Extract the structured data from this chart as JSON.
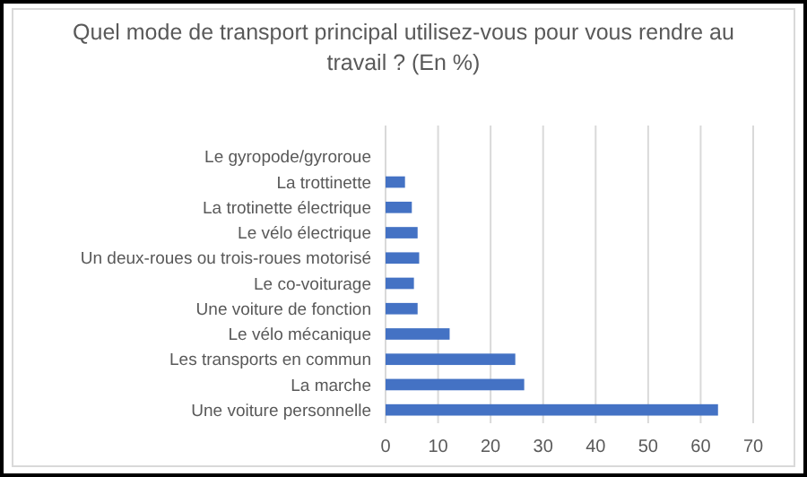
{
  "chart_data": {
    "type": "bar",
    "orientation": "horizontal",
    "title": "Quel mode de transport principal utilisez-vous pour vous rendre au travail ? (En %)",
    "categories": [
      "Le gyropode/gyroroue",
      "La trottinette",
      "La trotinette électrique",
      "Le vélo électrique",
      "Un deux-roues ou trois-roues motorisé",
      "Le co-voiturage",
      "Une voiture de fonction",
      "Le vélo mécanique",
      "Les transports en commun",
      "La marche",
      "Une voiture personnelle"
    ],
    "values": [
      0,
      3.7,
      5.0,
      6.1,
      6.4,
      5.4,
      6.1,
      12.2,
      24.7,
      26.4,
      63.3
    ],
    "color": "#4472c4",
    "xlim": [
      0,
      70
    ],
    "xticks": [
      0,
      10,
      20,
      30,
      40,
      50,
      60,
      70
    ],
    "grid": "x"
  }
}
